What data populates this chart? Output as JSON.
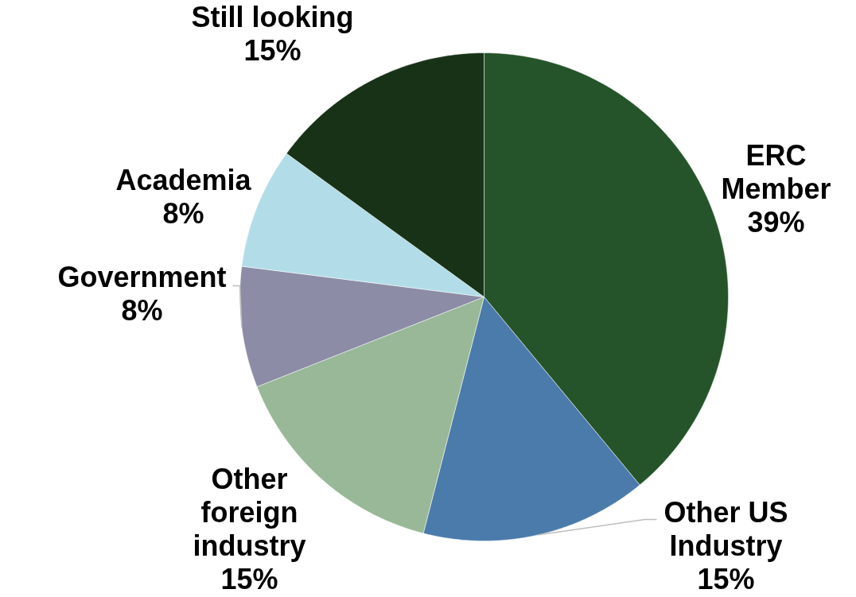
{
  "chart_data": {
    "type": "pie",
    "categories": [
      "ERC Member",
      "Other US Industry",
      "Other foreign industry",
      "Government",
      "Academia",
      "Still looking"
    ],
    "values": [
      39,
      15,
      15,
      8,
      8,
      15
    ],
    "colors": [
      "#26542a",
      "#4b7bab",
      "#98b898",
      "#8c8ca6",
      "#b2dde8",
      "#183218"
    ],
    "value_labels": [
      "39%",
      "15%",
      "15%",
      "8%",
      "8%",
      "15%"
    ]
  }
}
